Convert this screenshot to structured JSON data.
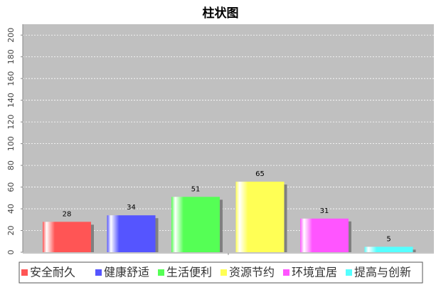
{
  "chart_data": {
    "type": "bar",
    "title": "柱状图",
    "categories": [
      null
    ],
    "series": [
      {
        "name": "安全耐久",
        "color": "#ff5555",
        "values": [
          28
        ]
      },
      {
        "name": "健康舒适",
        "color": "#5555ff",
        "values": [
          34
        ]
      },
      {
        "name": "生活便利",
        "color": "#55ff55",
        "values": [
          51
        ]
      },
      {
        "name": "资源节约",
        "color": "#ffff55",
        "values": [
          65
        ]
      },
      {
        "name": "环境宜居",
        "color": "#ff55ff",
        "values": [
          31
        ]
      },
      {
        "name": "提高与创新",
        "color": "#55ffff",
        "values": [
          5
        ]
      }
    ],
    "ylim": [
      0,
      210
    ],
    "yticks": [
      0,
      20,
      40,
      60,
      80,
      100,
      120,
      140,
      160,
      180,
      200
    ],
    "grid": true
  }
}
